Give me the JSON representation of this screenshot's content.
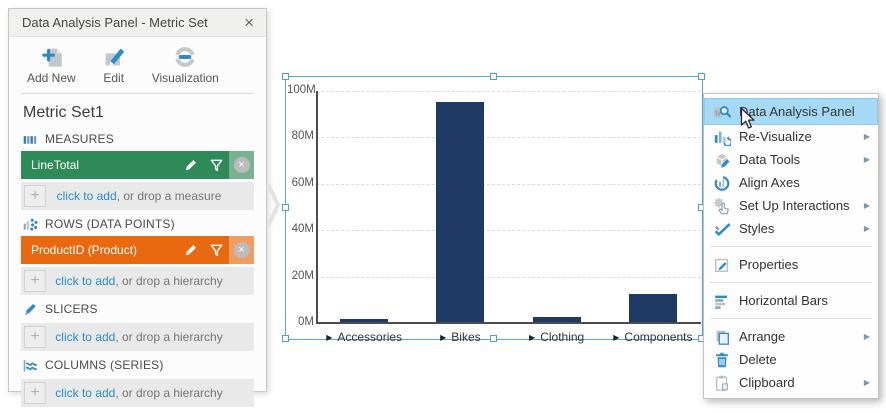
{
  "panel": {
    "title": "Data Analysis Panel - Metric Set",
    "metric_set_title": "Metric Set1",
    "toolbar": [
      {
        "id": "add-new",
        "label": "Add New",
        "icon": "add-new-icon"
      },
      {
        "id": "edit",
        "label": "Edit",
        "icon": "edit-icon"
      },
      {
        "id": "visualization",
        "label": "Visualization",
        "icon": "visualization-icon"
      }
    ],
    "sections": [
      {
        "id": "measures",
        "label": "MEASURES",
        "icon": "measures-icon",
        "chip": {
          "label": "LineTotal",
          "color": "#2e8b57"
        },
        "add": {
          "link": "click to add",
          "rest": ", or drop a measure"
        }
      },
      {
        "id": "rows",
        "label": "ROWS (DATA POINTS)",
        "icon": "rows-icon",
        "chip": {
          "label": "ProductID (Product)",
          "color": "#e8690f"
        },
        "add": {
          "link": "click to add",
          "rest": ", or drop a hierarchy"
        }
      },
      {
        "id": "slicers",
        "label": "SLICERS",
        "icon": "slicers-icon",
        "chip": null,
        "add": {
          "link": "click to add",
          "rest": ", or drop a hierarchy"
        }
      },
      {
        "id": "columns",
        "label": "COLUMNS (SERIES)",
        "icon": "columns-icon",
        "chip": null,
        "add": {
          "link": "click to add",
          "rest": ", or drop a hierarchy"
        }
      }
    ]
  },
  "chart_data": {
    "type": "bar",
    "categories": [
      "Accessories",
      "Bikes",
      "Clothing",
      "Components"
    ],
    "values": [
      1.5,
      95,
      2,
      12
    ],
    "value_unit": "M",
    "title": "",
    "xlabel": "",
    "ylabel": "",
    "ylim": [
      0,
      100
    ],
    "yticks": [
      "100M",
      "80M",
      "60M",
      "40M",
      "20M",
      "0M"
    ],
    "grid": "dashed-horizontal",
    "legend": "none",
    "bar_color": "#1e3a64"
  },
  "context_menu": {
    "highlight_color": "#a6d9f6",
    "items": [
      {
        "label": "Data Analysis Panel",
        "icon": "data-analysis-panel-icon",
        "highlighted": true,
        "submenu": false
      },
      {
        "label": "Re-Visualize",
        "icon": "re-visualize-icon",
        "highlighted": false,
        "submenu": true
      },
      {
        "label": "Data Tools",
        "icon": "data-tools-icon",
        "highlighted": false,
        "submenu": true
      },
      {
        "label": "Align Axes",
        "icon": "align-axes-icon",
        "highlighted": false,
        "submenu": false
      },
      {
        "label": "Set Up Interactions",
        "icon": "set-up-interactions-icon",
        "highlighted": false,
        "submenu": true
      },
      {
        "label": "Styles",
        "icon": "styles-icon",
        "highlighted": false,
        "submenu": true
      },
      {
        "separator": true
      },
      {
        "label": "Properties",
        "icon": "properties-icon",
        "highlighted": false,
        "submenu": false
      },
      {
        "separator": true
      },
      {
        "label": "Horizontal Bars",
        "icon": "horizontal-bars-icon",
        "highlighted": false,
        "submenu": false
      },
      {
        "separator": true
      },
      {
        "label": "Arrange",
        "icon": "arrange-icon",
        "highlighted": false,
        "submenu": true
      },
      {
        "label": "Delete",
        "icon": "delete-icon",
        "highlighted": false,
        "submenu": false
      },
      {
        "label": "Clipboard",
        "icon": "clipboard-icon",
        "highlighted": false,
        "submenu": true
      }
    ]
  },
  "icons": {
    "close_glyph": "×",
    "plus_glyph": "+",
    "drill_glyph": "▶",
    "submenu_glyph": "▶"
  },
  "colors": {
    "accent_blue": "#2b8bc6",
    "selection_blue": "#58a8d9",
    "bar_navy": "#1e3a64",
    "chip_green": "#2e8b57",
    "chip_orange": "#e8690f",
    "menu_highlight": "#a6d9f6"
  }
}
